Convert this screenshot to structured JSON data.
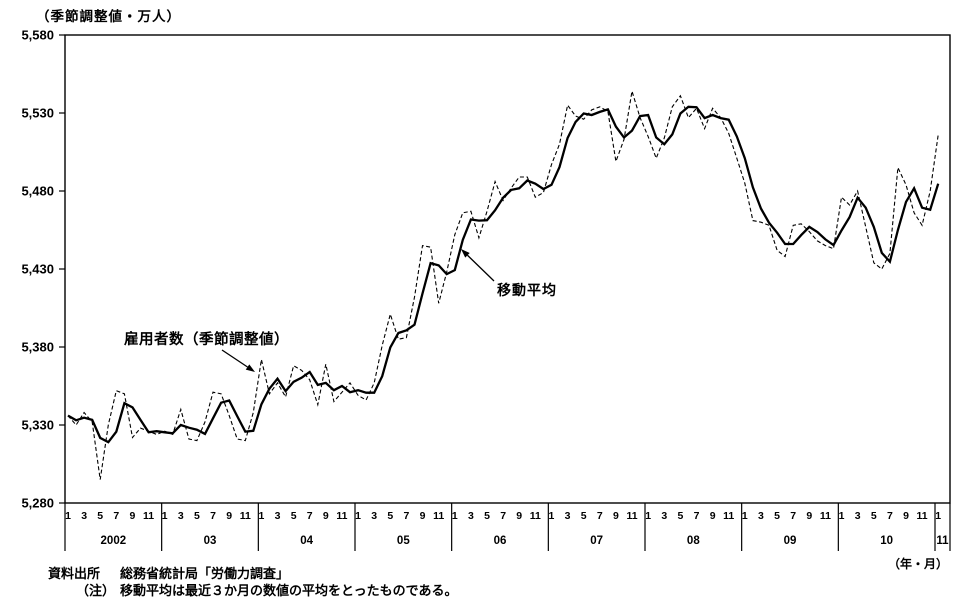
{
  "title": "（季節調整値・万人）",
  "axis_unit": "（年・月）",
  "annotations": {
    "employees_label": "雇用者数（季節調整値）",
    "moving_average_label": "移動平均"
  },
  "notes": {
    "source_label": "資料出所",
    "source_text": "総務省統計局「労働力調査」",
    "note_label": "（注）",
    "note_text": "移動平均は最近３か月の数値の平均をとったものである。"
  },
  "colors": {
    "line": "#000000",
    "background": "#ffffff"
  },
  "chart_data": {
    "type": "line",
    "title": "（季節調整値・万人）",
    "unit": "万人 (10,000 persons), seasonally adjusted",
    "start": {
      "year": 2002,
      "month": 1
    },
    "end": {
      "year": 2011,
      "month": 1
    },
    "grid": false,
    "legend_position": "in-plot arrows",
    "y_axis": {
      "min": 5280,
      "max": 5580,
      "tick_step": 50,
      "tick_labels": [
        "5,280",
        "5,330",
        "5,380",
        "5,430",
        "5,480",
        "5,530",
        "5,580"
      ]
    },
    "x_axis": {
      "month_tick_labels": [
        "1",
        "3",
        "5",
        "7",
        "9",
        "11"
      ],
      "years": [
        {
          "label": "2002",
          "n_months": 12
        },
        {
          "label": "03",
          "n_months": 12
        },
        {
          "label": "04",
          "n_months": 12
        },
        {
          "label": "05",
          "n_months": 12
        },
        {
          "label": "06",
          "n_months": 12
        },
        {
          "label": "07",
          "n_months": 12
        },
        {
          "label": "08",
          "n_months": 12
        },
        {
          "label": "09",
          "n_months": 12
        },
        {
          "label": "10",
          "n_months": 12
        },
        {
          "label": "11",
          "n_months": 1
        }
      ]
    },
    "series": [
      {
        "name": "雇用者数（季節調整値）",
        "style": "dashed",
        "values": [
          5336,
          5330,
          5338,
          5332,
          5295,
          5330,
          5352,
          5350,
          5322,
          5328,
          5326,
          5324,
          5326,
          5324,
          5340,
          5321,
          5320,
          5332,
          5351,
          5350,
          5336,
          5321,
          5320,
          5338,
          5372,
          5350,
          5357,
          5348,
          5368,
          5365,
          5359,
          5343,
          5369,
          5345,
          5351,
          5357,
          5349,
          5346,
          5357,
          5381,
          5401,
          5385,
          5386,
          5412,
          5445,
          5444,
          5408,
          5428,
          5452,
          5466,
          5467,
          5450,
          5467,
          5486,
          5474,
          5482,
          5489,
          5489,
          5476,
          5479,
          5497,
          5510,
          5535,
          5528,
          5526,
          5532,
          5534,
          5531,
          5499,
          5513,
          5544,
          5527,
          5515,
          5501,
          5514,
          5534,
          5541,
          5527,
          5533,
          5520,
          5533,
          5527,
          5517,
          5501,
          5485,
          5461,
          5460,
          5458,
          5442,
          5438,
          5458,
          5459,
          5454,
          5448,
          5445,
          5443,
          5476,
          5471,
          5480,
          5457,
          5434,
          5430,
          5440,
          5495,
          5484,
          5466,
          5458,
          5480,
          5516
        ]
      },
      {
        "name": "移動平均",
        "style": "solid",
        "derivation": "trailing mean of most recent 3 months",
        "values": [
          5336,
          5333,
          5334.7,
          5333.3,
          5321.7,
          5319,
          5325.7,
          5344,
          5341.3,
          5333.3,
          5325.3,
          5326,
          5325.3,
          5324.7,
          5330,
          5328.3,
          5327,
          5324.3,
          5334.3,
          5344.3,
          5345.7,
          5335.7,
          5325.7,
          5326.3,
          5343.3,
          5353.3,
          5359.7,
          5351.7,
          5357.7,
          5360.3,
          5364,
          5355.7,
          5357,
          5352.3,
          5355,
          5351,
          5352.3,
          5350.7,
          5350.7,
          5361.3,
          5379.7,
          5389,
          5390.7,
          5394.3,
          5414.3,
          5433.7,
          5432.3,
          5426.7,
          5429.3,
          5448.7,
          5461.7,
          5461,
          5461.3,
          5467.7,
          5475.7,
          5480.7,
          5481.7,
          5486.7,
          5484.7,
          5481.3,
          5484,
          5495.3,
          5514,
          5524.3,
          5529.7,
          5528.7,
          5530.7,
          5532.3,
          5521.3,
          5514.3,
          5518.7,
          5528,
          5528.7,
          5514.3,
          5510,
          5516.3,
          5529.7,
          5534,
          5533.7,
          5526.7,
          5528.7,
          5526.7,
          5525.7,
          5515,
          5501,
          5482.3,
          5468.7,
          5459.7,
          5453.3,
          5446,
          5446,
          5451.7,
          5457,
          5453.7,
          5449,
          5445.3,
          5454.7,
          5463.3,
          5475.7,
          5469.3,
          5457,
          5440.3,
          5434.7,
          5455,
          5473,
          5481.7,
          5469.3,
          5468,
          5484.7
        ]
      }
    ]
  }
}
